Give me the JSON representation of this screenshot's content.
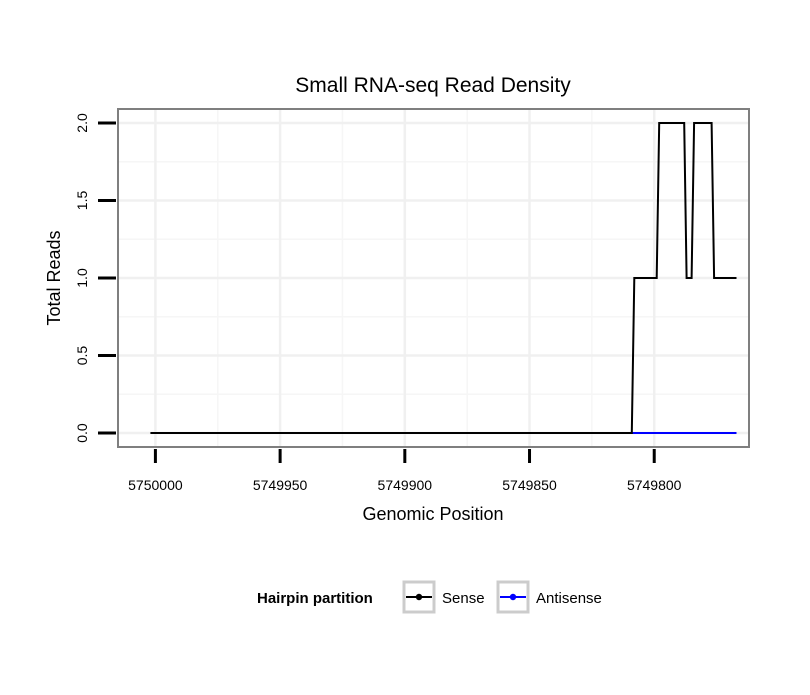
{
  "chart_data": {
    "type": "line",
    "title": "Small RNA-seq Read Density",
    "xlabel": "Genomic Position",
    "ylabel": "Total Reads",
    "xlim": [
      5750015,
      5749762
    ],
    "x_reversed": true,
    "ylim": [
      -0.09,
      2.09
    ],
    "x_ticks": [
      5750000,
      5749950,
      5749900,
      5749850,
      5749800
    ],
    "x_tick_labels": [
      "5750000",
      "5749950",
      "5749900",
      "5749850",
      "5749800"
    ],
    "y_ticks": [
      0,
      0.5,
      1,
      1.5,
      2
    ],
    "y_tick_labels": [
      "0.0",
      "0.5",
      "1.0",
      "1.5",
      "2.0"
    ],
    "grid": true,
    "legend": {
      "title": "Hairpin partition",
      "position": "bottom",
      "entries": [
        "Sense",
        "Antisense"
      ]
    },
    "series": [
      {
        "name": "Sense",
        "color": "#000000",
        "x": [
          5750002,
          5749809,
          5749808,
          5749799,
          5749798,
          5749788,
          5749787,
          5749785,
          5749784,
          5749777,
          5749776,
          5749767
        ],
        "y": [
          0,
          0,
          1,
          1,
          2,
          2,
          1,
          1,
          2,
          2,
          1,
          1
        ]
      },
      {
        "name": "Antisense",
        "color": "#0000ff",
        "x": [
          5749809,
          5749767
        ],
        "y": [
          0,
          0
        ]
      }
    ]
  }
}
